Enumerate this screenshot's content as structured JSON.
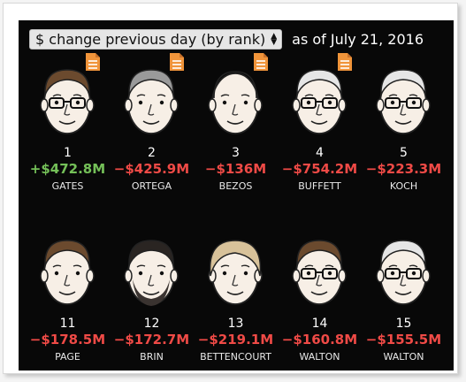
{
  "header": {
    "select_value": "$ change previous day (by rank)",
    "as_of": "as of July 21, 2016"
  },
  "colors": {
    "positive": "#74c058",
    "negative": "#ef4a46",
    "doc_icon": "#f0943a"
  },
  "people": [
    {
      "rank": "1",
      "change": "+$472.8M",
      "name": "GATES",
      "positive": true,
      "doc": true,
      "glasses": true,
      "hair": "brown"
    },
    {
      "rank": "2",
      "change": "−$425.9M",
      "name": "ORTEGA",
      "positive": false,
      "doc": true,
      "glasses": false,
      "hair": "gray"
    },
    {
      "rank": "3",
      "change": "−$136M",
      "name": "BEZOS",
      "positive": false,
      "doc": true,
      "glasses": false,
      "hair": "bald"
    },
    {
      "rank": "4",
      "change": "−$754.2M",
      "name": "BUFFETT",
      "positive": false,
      "doc": true,
      "glasses": true,
      "hair": "white"
    },
    {
      "rank": "5",
      "change": "−$223.3M",
      "name": "KOCH",
      "positive": false,
      "doc": false,
      "glasses": true,
      "hair": "white"
    },
    {
      "rank": "11",
      "change": "−$178.5M",
      "name": "PAGE",
      "positive": false,
      "doc": false,
      "glasses": false,
      "hair": "brown"
    },
    {
      "rank": "12",
      "change": "−$172.7M",
      "name": "BRIN",
      "positive": false,
      "doc": false,
      "glasses": false,
      "hair": "dark"
    },
    {
      "rank": "13",
      "change": "−$219.1M",
      "name": "BETTENCOURT",
      "positive": false,
      "doc": false,
      "glasses": false,
      "hair": "blonde"
    },
    {
      "rank": "14",
      "change": "−$160.8M",
      "name": "WALTON",
      "positive": false,
      "doc": false,
      "glasses": true,
      "hair": "brown"
    },
    {
      "rank": "15",
      "change": "−$155.5M",
      "name": "WALTON",
      "positive": false,
      "doc": false,
      "glasses": true,
      "hair": "white"
    }
  ]
}
